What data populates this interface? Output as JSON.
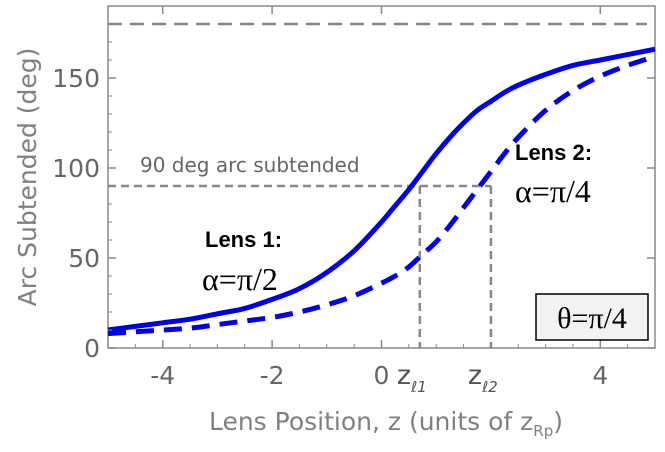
{
  "chart_data": {
    "type": "line",
    "title": "",
    "xlabel": "Lens Position, z (units of z",
    "xlabel_sub": "Rp",
    "xlabel_end": ")",
    "ylabel": "Arc Subtended (deg)",
    "xlim": [
      -5,
      5
    ],
    "ylim": [
      0,
      190
    ],
    "x_ticks": [
      "-4",
      "-2",
      "0",
      "4"
    ],
    "x_tick_values": [
      -4,
      -2,
      0,
      4
    ],
    "y_ticks": [
      "0",
      "50",
      "100",
      "150"
    ],
    "y_tick_values": [
      0,
      50,
      100,
      150
    ],
    "x_special_ticks": [
      {
        "label": "z",
        "sub": "ℓ1",
        "x": 0.7
      },
      {
        "label": "z",
        "sub": "ℓ2",
        "x": 2.0
      }
    ],
    "grid": false,
    "x": [
      -5,
      -4.5,
      -4,
      -3.5,
      -3,
      -2.5,
      -2,
      -1.5,
      -1,
      -0.5,
      0,
      0.25,
      0.5,
      0.75,
      1,
      1.25,
      1.5,
      1.75,
      2,
      2.25,
      2.5,
      3,
      3.5,
      4,
      4.5,
      5
    ],
    "series": [
      {
        "name": "Lens 1",
        "style": "solid",
        "color": "#0000ee",
        "values": [
          10,
          12,
          14,
          16,
          19,
          22,
          27,
          33,
          42,
          54,
          70,
          79,
          88,
          98,
          108,
          117,
          125,
          132,
          137,
          142,
          146,
          152,
          157,
          160,
          163,
          166
        ]
      },
      {
        "name": "Lens 2",
        "style": "dashed",
        "color": "#0000ee",
        "values": [
          8,
          9,
          10,
          11,
          13,
          15,
          17,
          20,
          24,
          29,
          36,
          40,
          45,
          52,
          59,
          68,
          78,
          88,
          98,
          108,
          117,
          132,
          143,
          151,
          157,
          162
        ]
      }
    ],
    "reference_lines": {
      "asymptote_y": 180,
      "level_y": 90,
      "level_label": "90 deg arc subtended",
      "color": "#888888"
    },
    "annotations": {
      "lens1_title": "Lens 1:",
      "lens1_alpha": "α=π/2",
      "lens2_title": "Lens 2:",
      "lens2_alpha": "α=π/4",
      "theta_box": "θ=π/4"
    }
  }
}
